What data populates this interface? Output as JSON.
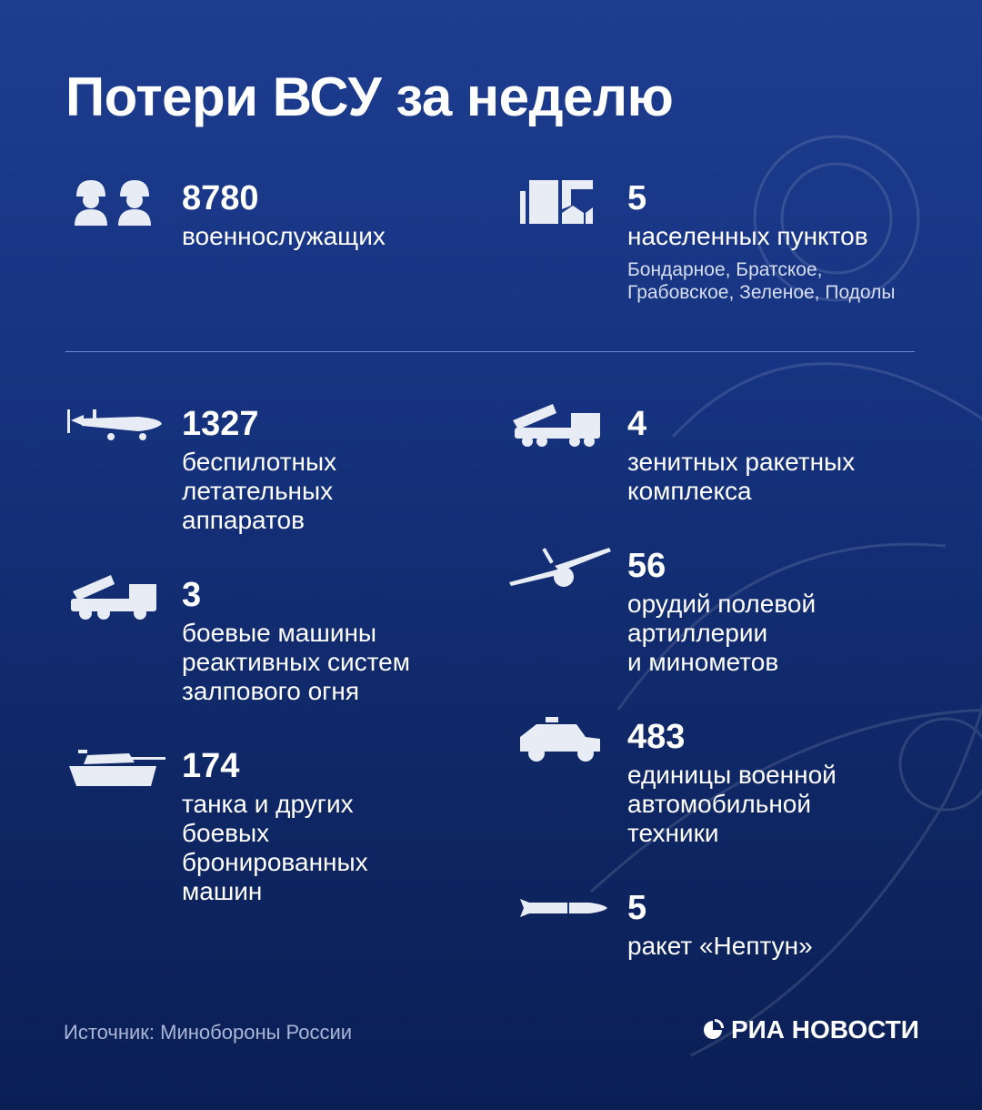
{
  "title": "Потери ВСУ за неделю",
  "items_left": [
    {
      "icon": "soldiers-icon",
      "number": "8780",
      "label": "военнослужащих"
    },
    {
      "icon": "drone-icon",
      "number": "1327",
      "label": "беспилотных\nлетательных\nаппаратов"
    },
    {
      "icon": "mlrs-icon",
      "number": "3",
      "label": "боевые машины\nреактивных систем\nзалпового огня"
    },
    {
      "icon": "tank-icon",
      "number": "174",
      "label": "танка и других\nбоевых\nбронированных\nмашин"
    }
  ],
  "items_right": [
    {
      "icon": "buildings-icon",
      "number": "5",
      "label": "населенных пунктов",
      "detail": "Бондарное, Братское,\nГрабовское, Зеленое, Подолы"
    },
    {
      "icon": "sam-launcher-icon",
      "number": "4",
      "label": "зенитных ракетных\nкомплекса"
    },
    {
      "icon": "howitzer-icon",
      "number": "56",
      "label": "орудий полевой\nартиллерии\nи минометов"
    },
    {
      "icon": "military-vehicle-icon",
      "number": "483",
      "label": "единицы военной\nавтомобильной\nтехники"
    },
    {
      "icon": "missile-icon",
      "number": "5",
      "label": "ракет «Нептун»"
    }
  ],
  "footer": {
    "source": "Источник: Минобороны России",
    "logo": "РИА НОВОСТИ"
  },
  "colors": {
    "background_top": "#1e3d8f",
    "background_bottom": "#0b1f55",
    "text": "#ffffff"
  }
}
